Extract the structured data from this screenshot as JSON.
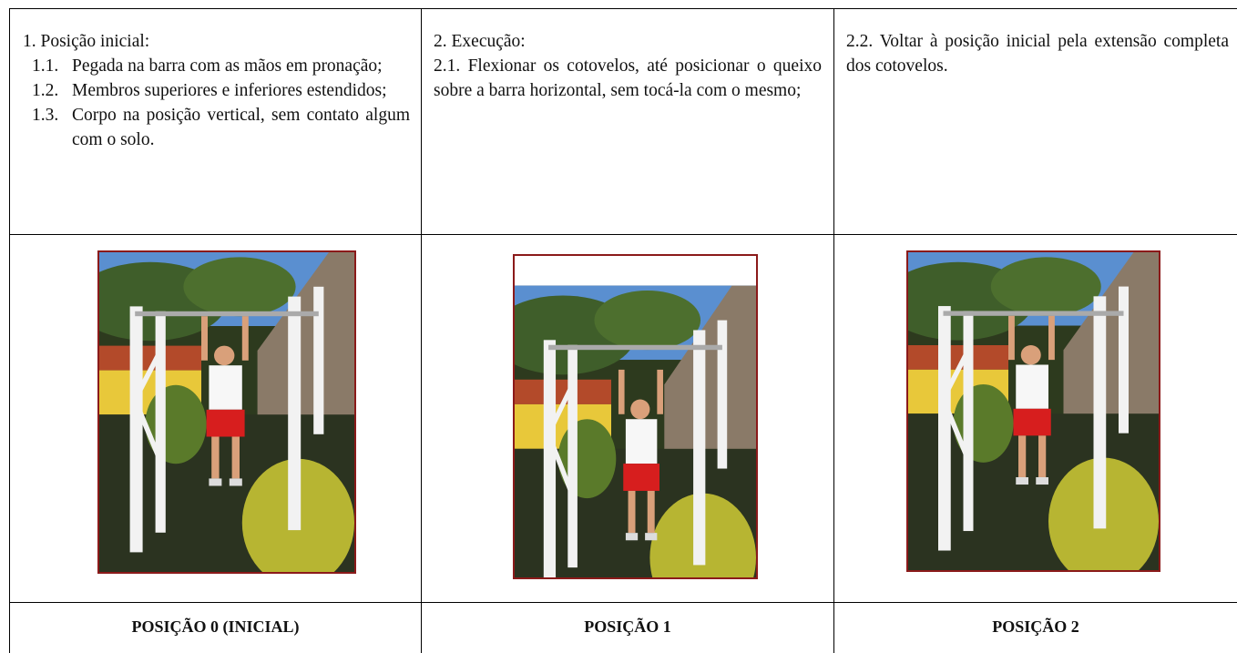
{
  "table": {
    "columns": [
      {
        "heading": "1.   Posição inicial:",
        "items": [
          {
            "num": "1.1.",
            "text": "Pegada na barra com as mãos em pronação;"
          },
          {
            "num": "1.2.",
            "text": "Membros superiores e inferiores estendidos;"
          },
          {
            "num": "1.3.",
            "text": "Corpo na posição vertical, sem contato algum com o solo."
          }
        ],
        "caption": "POSIÇÃO 0 (INICIAL)"
      },
      {
        "heading": "2. Execução:",
        "paragraph": "2.1.   Flexionar os cotovelos, até posicionar o queixo sobre a barra horizontal, sem tocá-la com o mesmo;",
        "caption": "POSIÇÃO 1"
      },
      {
        "paragraph": "2.2.  Voltar à posição inicial pela extensão completa dos cotovelos.",
        "caption": "POSIÇÃO 2"
      }
    ]
  }
}
